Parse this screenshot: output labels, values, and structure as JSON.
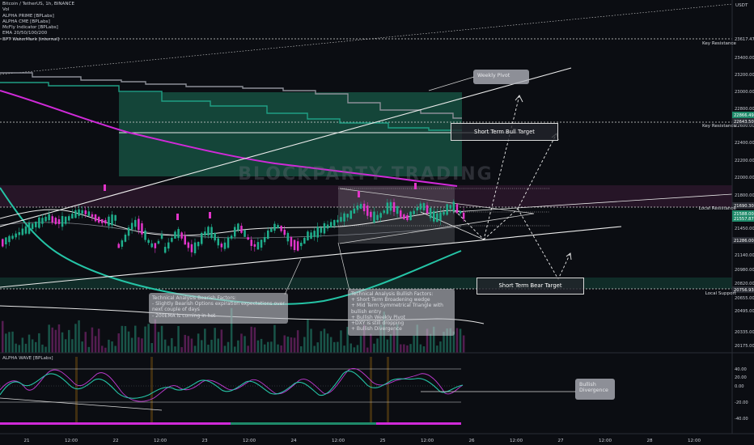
{
  "header": {
    "symbol": "Bitcoin / TetherUS, 1h, BINANCE",
    "indicators": [
      "Vol",
      "ALPHA PRIME [BPLabs]",
      "ALPHA CME [BPLabs]",
      "McFly Indicator [BPLabs]",
      "EMA 20/50/100/200",
      "BPT WaterMark [internal]"
    ]
  },
  "watermark": "BLOCKPARTY TRADING",
  "price_axis": {
    "currency": "USDT",
    "ticks": [
      "23617.47",
      "23400.00",
      "23200.00",
      "23000.00",
      "22800.00",
      "22600.00",
      "22400.00",
      "22200.00",
      "22000.00",
      "21800.00",
      "21600.00",
      "21450.00",
      "21140.00",
      "20980.00",
      "20820.00",
      "20655.00",
      "20495.00",
      "20335.00",
      "20175.00"
    ],
    "tags": [
      {
        "text": "22866.49",
        "color": "#1f8a6a"
      },
      {
        "text": "22643.50",
        "color": "#2a2d35"
      },
      {
        "text": "21690.30",
        "color": "#2a2d35"
      },
      {
        "text": "21588.00",
        "color": "#1f8a6a"
      },
      {
        "text": "21557.87",
        "color": "#1f8a6a"
      },
      {
        "text": "21286.00",
        "color": "#2a2d35"
      },
      {
        "text": "20756.93",
        "color": "#2a2d35"
      }
    ]
  },
  "time_axis": {
    "labels": [
      "21",
      "12:00",
      "22",
      "12:00",
      "23",
      "12:00",
      "24",
      "12:00",
      "25",
      "12:00",
      "26",
      "12:00",
      "27",
      "12:00",
      "28",
      "12:00"
    ]
  },
  "levels": {
    "key_resistance_top": "Key Resistance",
    "key_resistance_mid": "Key Resistance",
    "local_resistance": "Local Resistance",
    "local_support": "Local Support"
  },
  "annotations": {
    "weekly_pivot": "Weekly Pivot",
    "bull_target": "Short Term Bull Target",
    "bear_target": "Short Term Bear Target",
    "bearish_note": "Technical Analysis Bearish Factors:\n- Slightly Bearish Options expiration expectations over next couple of days\n- 200EMA is coming in hot",
    "bullish_note": "Technical Analysis Bullish Factors:\n+ Short Term Broadening wedge\n+ Mid Term Symmetrical Triangle with bullish entry\n+ Bullish Weekly Pivot\n+DXY is still dropping\n+ Bullish Divergence",
    "bullish_divergence": "Bullish\nDivergence"
  },
  "oscillator": {
    "title": "ALPHA WAVE [BPLabs]",
    "ticks": [
      "40.00",
      "20.00",
      "0.00",
      "-20.00",
      "-40.00"
    ]
  },
  "colors": {
    "background": "#0b0d12",
    "candle_up": "#1fae8c",
    "candle_down": "#e234c9",
    "ema_magenta": "#d02ad8",
    "ema_teal": "#25c4a6",
    "zone_green": "#1f8a6a",
    "zone_pink": "#5a2550"
  },
  "chart_data": {
    "type": "candlestick",
    "title": "Bitcoin / TetherUS, 1h, BINANCE",
    "y_range": [
      20100,
      23700
    ],
    "levels": {
      "key_resistance_top": 23617.47,
      "key_resistance": 22643.5,
      "local_resistance": 21690.3,
      "local_support": 20756.93
    },
    "last_price": 21588.0,
    "targets": {
      "bull": 22600,
      "bear": 20800
    },
    "oscillator_range": [
      -50,
      50
    ]
  }
}
